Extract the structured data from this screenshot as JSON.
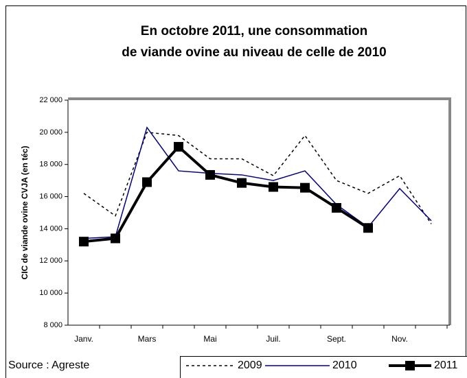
{
  "chart_data": {
    "type": "line",
    "title": [
      "En octobre 2011, une consommation",
      "de viande ovine au niveau de celle de 2010"
    ],
    "y_label": "CIC de viande ovine CVJA (en téc)",
    "source": "Source : Agreste",
    "categories": [
      "Janv.",
      null,
      "Mars",
      null,
      "Mai",
      null,
      "Juil.",
      null,
      "Sept.",
      null,
      "Nov.",
      null
    ],
    "series": [
      {
        "name": "2009",
        "color": "#000000",
        "style": "dashed",
        "values": [
          16200,
          14800,
          20000,
          19800,
          18350,
          18350,
          17300,
          19800,
          17000,
          16200,
          17300,
          14300
        ]
      },
      {
        "name": "2010",
        "color": "#000080",
        "style": "solid",
        "values": [
          13400,
          13500,
          20300,
          17600,
          17450,
          17350,
          17000,
          17600,
          15500,
          14100,
          16500,
          14500
        ]
      },
      {
        "name": "2011",
        "color": "#000000",
        "style": "thick-square",
        "values": [
          13200,
          13400,
          16900,
          19100,
          17350,
          16850,
          16600,
          16550,
          15300,
          14050,
          null,
          null
        ]
      }
    ],
    "ylim": [
      8000,
      22000
    ],
    "yticks": [
      {
        "value": 8000,
        "label": "8 000"
      },
      {
        "value": 10000,
        "label": "10 000"
      },
      {
        "value": 12000,
        "label": "12 000"
      },
      {
        "value": 14000,
        "label": "14 000"
      },
      {
        "value": 16000,
        "label": "16 000"
      },
      {
        "value": 18000,
        "label": "18 000"
      },
      {
        "value": 20000,
        "label": "20 000"
      },
      {
        "value": 22000,
        "label": "22 000"
      }
    ]
  }
}
